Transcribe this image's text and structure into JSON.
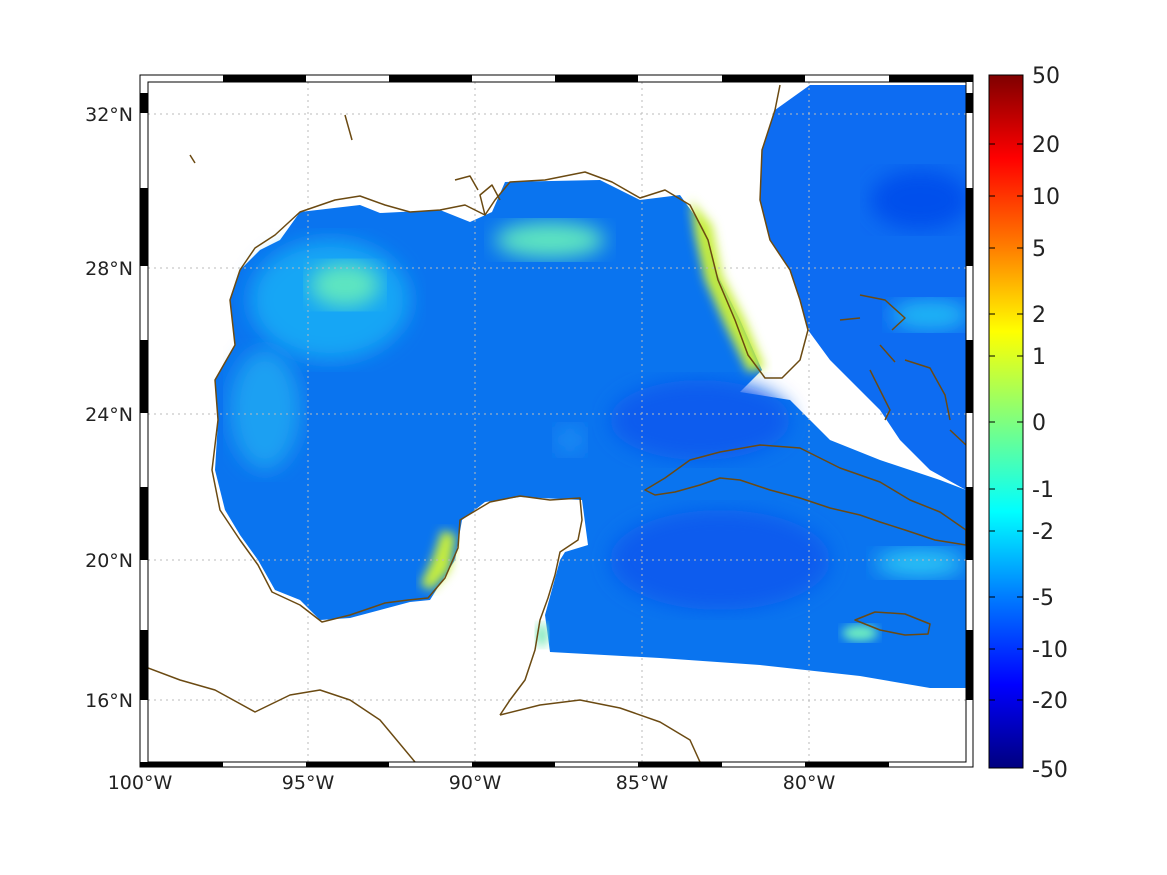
{
  "map": {
    "longitude_ticks": [
      "100°W",
      "95°W",
      "90°W",
      "85°W",
      "80°W"
    ],
    "latitude_ticks": [
      "32°N",
      "28°N",
      "24°N",
      "20°N",
      "16°N"
    ],
    "region": "Gulf of Mexico and Caribbean",
    "lon_range": [
      -100,
      -75
    ],
    "lat_range": [
      14.5,
      33
    ],
    "grid": true,
    "coastline_color": "#6b4a12",
    "field_colormap": "jet",
    "dominant_field_color": "#0a6cf0"
  },
  "colorbar": {
    "labels": [
      "50",
      "20",
      "10",
      "5",
      "2",
      "1",
      "0",
      "-1",
      "-2",
      "-5",
      "-10",
      "-20",
      "-50"
    ],
    "min": -50,
    "max": 50,
    "stops": [
      "#7f0000",
      "#ff0000",
      "#ff7f00",
      "#ffff00",
      "#7fff7f",
      "#00ffff",
      "#007fff",
      "#0000ff",
      "#00007f"
    ]
  }
}
